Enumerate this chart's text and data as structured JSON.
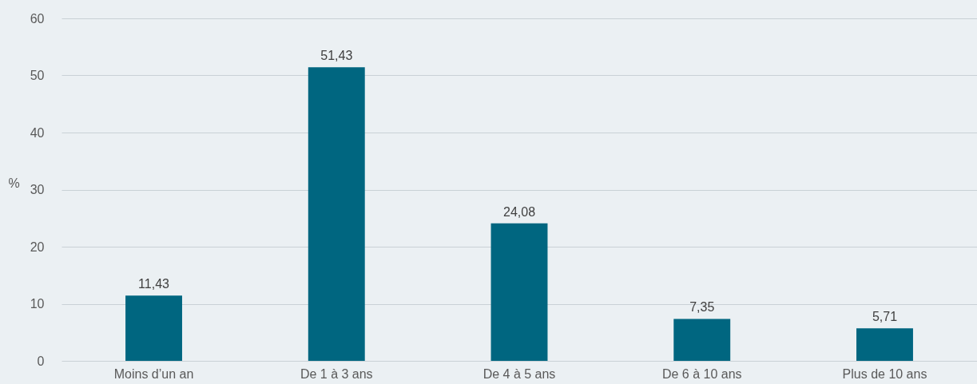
{
  "chart_data": {
    "type": "bar",
    "ylabel": "%",
    "categories": [
      "Moins d’un an",
      "De 1 à 3 ans",
      "De 4 à 5 ans",
      "De 6 à 10 ans",
      "Plus de 10 ans"
    ],
    "values": [
      11.43,
      51.43,
      24.08,
      7.35,
      5.71
    ],
    "value_labels": [
      "11,43",
      "51,43",
      "24,08",
      "7,35",
      "5,71"
    ],
    "color": "#006680",
    "ylim": [
      0,
      60
    ],
    "yticks": [
      0,
      10,
      20,
      30,
      40,
      50,
      60
    ],
    "grid": "y"
  }
}
